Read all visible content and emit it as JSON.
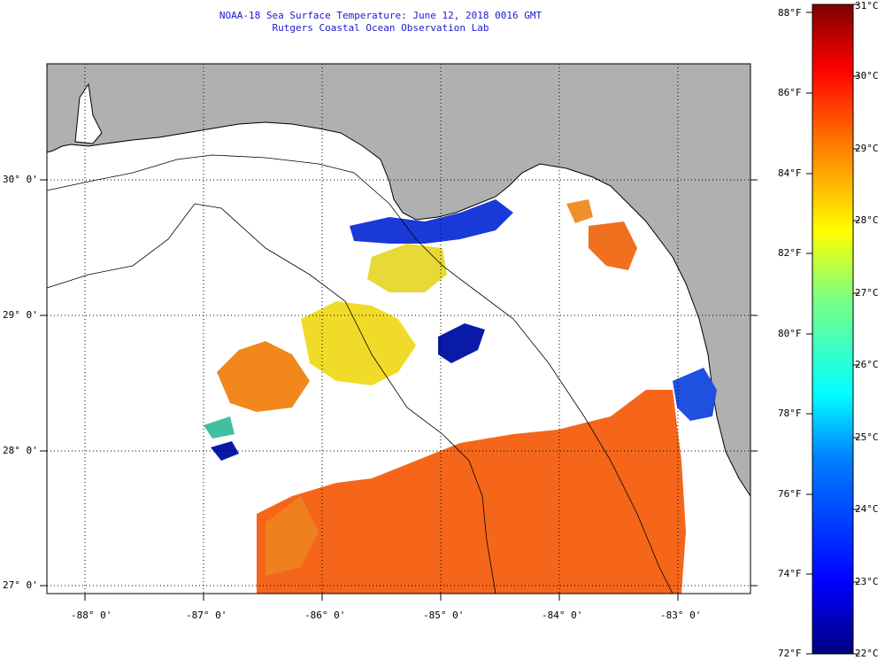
{
  "title": {
    "line1": "NOAA-18 Sea Surface Temperature:  June 12, 2018 0016 GMT",
    "line2": "Rutgers Coastal Ocean Observation Lab"
  },
  "map": {
    "lon_ticks": [
      "-88° 0'",
      "-87° 0'",
      "-86° 0'",
      "-85° 0'",
      "-84° 0'",
      "-83° 0'"
    ],
    "lat_ticks": [
      "30° 0'",
      "29° 0'",
      "28° 0'",
      "27° 0'"
    ],
    "land_color": "#b0b0b0",
    "missing_color": "#ffffff"
  },
  "colorbar": {
    "fahrenheit_labels": [
      "88°F",
      "86°F",
      "84°F",
      "82°F",
      "80°F",
      "78°F",
      "76°F",
      "74°F",
      "72°F"
    ],
    "celsius_labels": [
      "31°C",
      "30°C",
      "29°C",
      "28°C",
      "27°C",
      "26°C",
      "25°C",
      "24°C",
      "23°C",
      "22°C"
    ],
    "colors": [
      "#00007f",
      "#0000ff",
      "#007fff",
      "#00ffff",
      "#7fff7f",
      "#ffff00",
      "#ff7f00",
      "#ff0000",
      "#7f0000"
    ]
  }
}
